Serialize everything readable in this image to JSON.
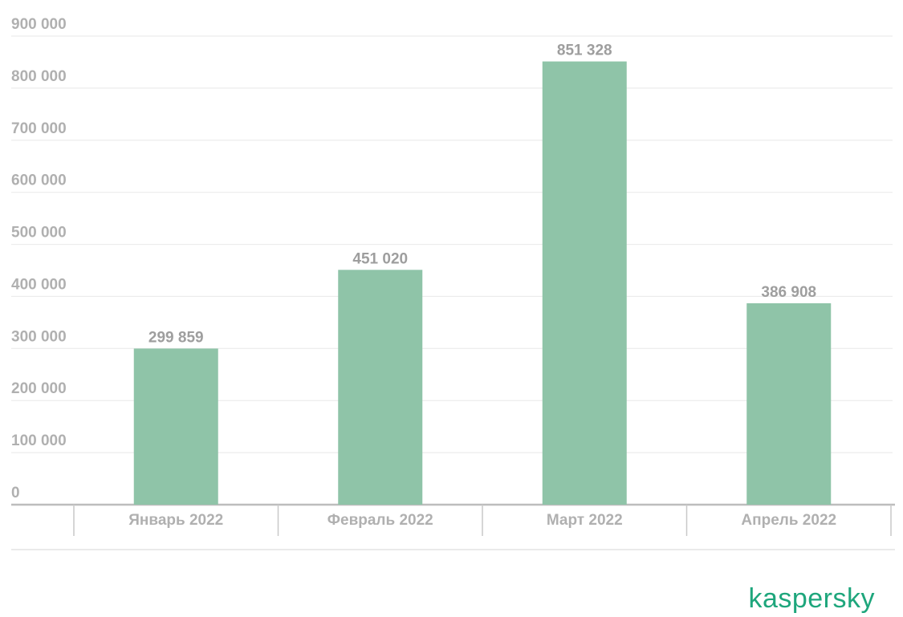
{
  "chart_data": {
    "type": "bar",
    "categories": [
      "Январь 2022",
      "Февраль 2022",
      "Март 2022",
      "Апрель 2022"
    ],
    "values": [
      299859,
      451020,
      851328,
      386908
    ],
    "value_labels": [
      "299 859",
      "451 020",
      "851 328",
      "386 908"
    ],
    "color": "#8fc4a8",
    "ylim": [
      0,
      900000
    ],
    "yticks": [
      0,
      {
        "value": 100000,
        "label": "100 000"
      },
      {
        "value": 200000,
        "label": "200 000"
      },
      {
        "value": 300000,
        "label": "300 000"
      },
      {
        "value": 400000,
        "label": "400 000"
      },
      {
        "value": 500000,
        "label": "500 000"
      },
      {
        "value": 600000,
        "label": "600 000"
      },
      {
        "value": 700000,
        "label": "700 000"
      },
      {
        "value": 800000,
        "label": "800 000"
      },
      {
        "value": 900000,
        "label": "900 000"
      }
    ],
    "grid": true
  },
  "logo": "kaspersky"
}
